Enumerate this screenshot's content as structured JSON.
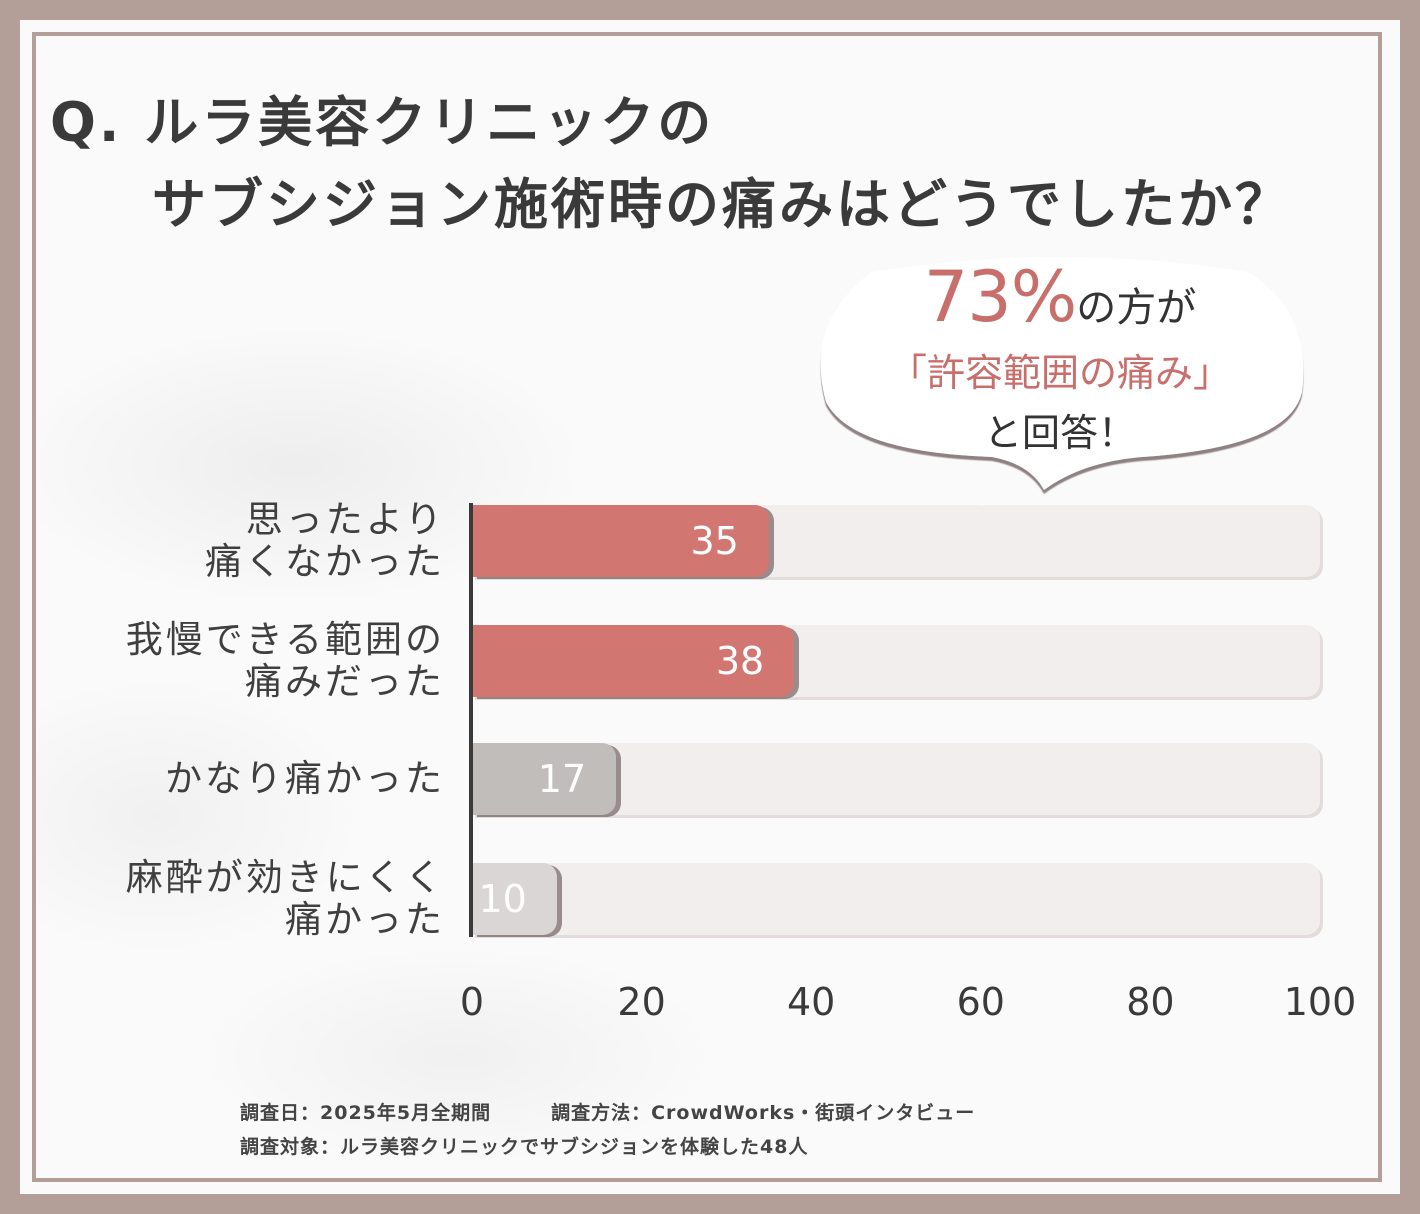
{
  "title": {
    "line1": "Q. ルラ美容クリニックの",
    "line2": "サブシジョン施術時の痛みはどうでしたか？"
  },
  "callout": {
    "percent": "73%",
    "percent_suffix": "の方が",
    "quote": "「許容範囲の痛み」",
    "ending": "と回答！"
  },
  "chart_data": {
    "type": "bar",
    "orientation": "horizontal",
    "categories": [
      [
        "思ったより",
        "痛くなかった"
      ],
      [
        "我慢できる範囲の",
        "痛みだった"
      ],
      [
        "かなり痛かった"
      ],
      [
        "麻酔が効きにくく",
        "痛かった"
      ]
    ],
    "values": [
      35,
      38,
      17,
      10
    ],
    "value_labels": [
      "35",
      "38",
      "17",
      "10"
    ],
    "bar_colors": [
      "#d27671",
      "#d27671",
      "#c0bdbb",
      "#d9d6d5"
    ],
    "xlim": [
      0,
      100
    ],
    "xticks": [
      "0",
      "20",
      "40",
      "60",
      "80",
      "100"
    ],
    "title": "Q. ルラ美容クリニックのサブシジョン施術時の痛みはどうでしたか？",
    "xlabel": "",
    "ylabel": ""
  },
  "notes": {
    "line1": "調査日：2025年5月全期間　　　調査方法：CrowdWorks・街頭インタビュー",
    "line2": "調査対象：ルラ美容クリニックでサブシジョンを体験した48人"
  },
  "colors": {
    "frame": "#b49e98",
    "accent": "#c86f6c",
    "bar_red": "#d27671",
    "text": "#3a3a3a"
  }
}
